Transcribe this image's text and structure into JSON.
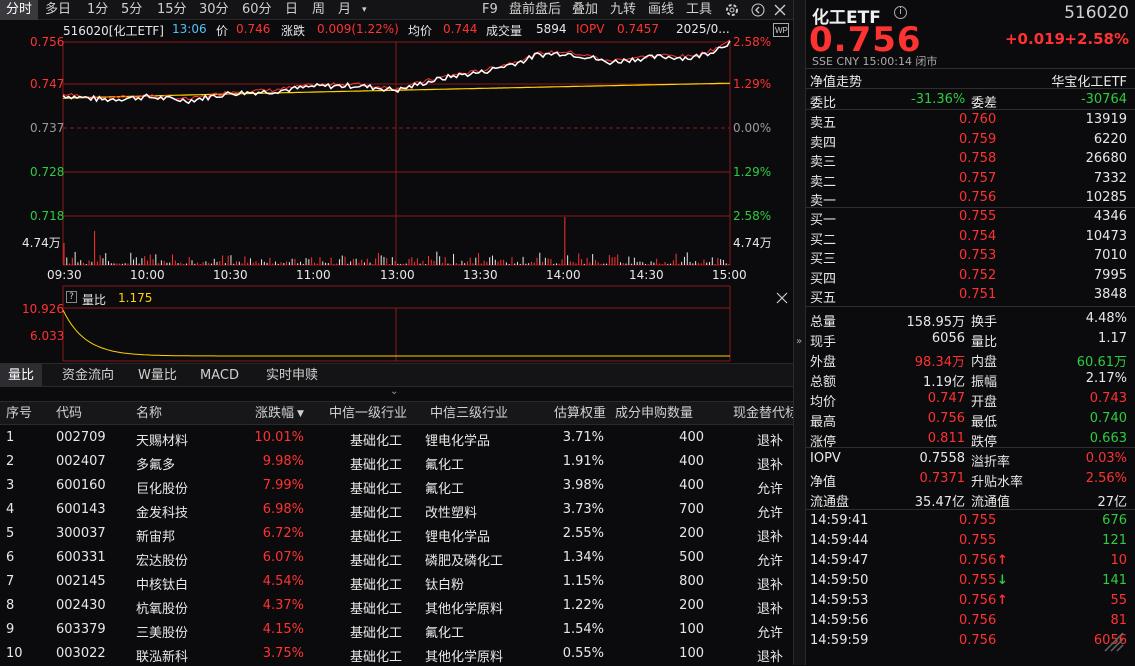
{
  "toolbar": {
    "left": [
      "分时",
      "多日",
      "1分",
      "5分",
      "15分",
      "30分",
      "60分",
      "日",
      "周",
      "月"
    ],
    "dropdown": "▾",
    "right": [
      "F9",
      "盘前盘后",
      "叠加",
      "九转",
      "画线",
      "工具"
    ]
  },
  "quote_line": {
    "name": "516020[化工ETF]",
    "time": "13:06",
    "price_label": "价",
    "price": "0.746",
    "change_label": "涨跌",
    "change": "0.009(1.22%)",
    "avg_label": "均价",
    "avg": "0.744",
    "volume_label": "成交量",
    "volume": "5894",
    "iopv_label": "IOPV",
    "iopv": "0.7457",
    "date": "2025/0..."
  },
  "price_axis_left": [
    "0.756",
    "0.747",
    "0.737",
    "0.728",
    "0.718"
  ],
  "price_axis_right": [
    "2.58%",
    "1.29%",
    "0.00%",
    "1.29%",
    "2.58%"
  ],
  "vol_axis": "4.74万",
  "time_axis": [
    "09:30",
    "10:00",
    "10:30",
    "11:00",
    "13:00",
    "13:30",
    "14:00",
    "14:30",
    "15:00"
  ],
  "sub_chart": {
    "label": "量比",
    "value": "1.175",
    "max": "10.926",
    "mid": "6.033"
  },
  "sub_tabs": [
    "量比",
    "资金流向",
    "W量比",
    "MACD",
    "实时申赎"
  ],
  "table": {
    "headers": [
      "序号",
      "代码",
      "名称",
      "涨跌幅",
      "中信一级行业",
      "中信三级行业",
      "估算权重",
      "成分申购数量",
      "现金替代标"
    ],
    "rows": [
      {
        "idx": "1",
        "code": "002709",
        "name": "天赐材料",
        "chg": "10.01%",
        "ind1": "基础化工",
        "ind3": "锂电化学品",
        "weight": "3.71%",
        "qty": "400",
        "cash": "退补"
      },
      {
        "idx": "2",
        "code": "002407",
        "name": "多氟多",
        "chg": "9.98%",
        "ind1": "基础化工",
        "ind3": "氟化工",
        "weight": "1.91%",
        "qty": "400",
        "cash": "退补"
      },
      {
        "idx": "3",
        "code": "600160",
        "name": "巨化股份",
        "chg": "7.99%",
        "ind1": "基础化工",
        "ind3": "氟化工",
        "weight": "3.98%",
        "qty": "400",
        "cash": "允许"
      },
      {
        "idx": "4",
        "code": "600143",
        "name": "金发科技",
        "chg": "6.98%",
        "ind1": "基础化工",
        "ind3": "改性塑料",
        "weight": "3.73%",
        "qty": "700",
        "cash": "允许"
      },
      {
        "idx": "5",
        "code": "300037",
        "name": "新宙邦",
        "chg": "6.72%",
        "ind1": "基础化工",
        "ind3": "锂电化学品",
        "weight": "2.55%",
        "qty": "200",
        "cash": "退补"
      },
      {
        "idx": "6",
        "code": "600331",
        "name": "宏达股份",
        "chg": "6.07%",
        "ind1": "基础化工",
        "ind3": "磷肥及磷化工",
        "weight": "1.34%",
        "qty": "500",
        "cash": "允许"
      },
      {
        "idx": "7",
        "code": "002145",
        "name": "中核钛白",
        "chg": "4.54%",
        "ind1": "基础化工",
        "ind3": "钛白粉",
        "weight": "1.15%",
        "qty": "800",
        "cash": "退补"
      },
      {
        "idx": "8",
        "code": "002430",
        "name": "杭氧股份",
        "chg": "4.37%",
        "ind1": "基础化工",
        "ind3": "其他化学原料",
        "weight": "1.22%",
        "qty": "200",
        "cash": "退补"
      },
      {
        "idx": "9",
        "code": "603379",
        "name": "三美股份",
        "chg": "4.15%",
        "ind1": "基础化工",
        "ind3": "氟化工",
        "weight": "1.54%",
        "qty": "100",
        "cash": "允许"
      },
      {
        "idx": "10",
        "code": "003022",
        "name": "联泓新科",
        "chg": "3.75%",
        "ind1": "基础化工",
        "ind3": "其他化学原料",
        "weight": "0.55%",
        "qty": "100",
        "cash": "退补"
      }
    ]
  },
  "right": {
    "title": "化工ETF",
    "code": "516020",
    "price": "0.756",
    "change": "+0.019",
    "change_pct": "+2.58%",
    "sub": "SSE  CNY  15:00:14  闭市",
    "nav_trend": "净值走势",
    "fund_name": "华宝化工ETF",
    "webi_label": "委比",
    "webi": "-31.36%",
    "weicha_label": "委差",
    "weicha": "-30764",
    "asks": [
      {
        "label": "卖五",
        "price": "0.760",
        "vol": "13919"
      },
      {
        "label": "卖四",
        "price": "0.759",
        "vol": "6220"
      },
      {
        "label": "卖三",
        "price": "0.758",
        "vol": "26680"
      },
      {
        "label": "卖二",
        "price": "0.757",
        "vol": "7332"
      },
      {
        "label": "卖一",
        "price": "0.756",
        "vol": "10285"
      }
    ],
    "bids": [
      {
        "label": "买一",
        "price": "0.755",
        "vol": "4346"
      },
      {
        "label": "买二",
        "price": "0.754",
        "vol": "10473"
      },
      {
        "label": "买三",
        "price": "0.753",
        "vol": "7010"
      },
      {
        "label": "买四",
        "price": "0.752",
        "vol": "7995"
      },
      {
        "label": "买五",
        "price": "0.751",
        "vol": "3848"
      }
    ],
    "stats": [
      {
        "l1": "总量",
        "v1": "158.95万",
        "l2": "换手",
        "v2": "4.48%"
      },
      {
        "l1": "现手",
        "v1": "6056",
        "l2": "量比",
        "v2": "1.17"
      },
      {
        "l1": "外盘",
        "v1": "98.34万",
        "l2": "内盘",
        "v2": "60.61万"
      },
      {
        "l1": "总额",
        "v1": "1.19亿",
        "l2": "振幅",
        "v2": "2.17%"
      },
      {
        "l1": "均价",
        "v1": "0.747",
        "l2": "开盘",
        "v2": "0.743"
      },
      {
        "l1": "最高",
        "v1": "0.756",
        "l2": "最低",
        "v2": "0.740"
      },
      {
        "l1": "涨停",
        "v1": "0.811",
        "l2": "跌停",
        "v2": "0.663"
      }
    ],
    "iopv_stats": [
      {
        "l1": "IOPV",
        "v1": "0.7558",
        "l2": "溢折率",
        "v2": "0.03%"
      },
      {
        "l1": "净值",
        "v1": "0.7371",
        "l2": "升贴水率",
        "v2": "2.56%"
      },
      {
        "l1": "流通盘",
        "v1": "35.47亿",
        "l2": "流通值",
        "v2": "27亿"
      }
    ],
    "ticks": [
      {
        "time": "14:59:41",
        "price": "0.755",
        "arrow": "",
        "vol": "676"
      },
      {
        "time": "14:59:44",
        "price": "0.755",
        "arrow": "",
        "vol": "121"
      },
      {
        "time": "14:59:47",
        "price": "0.756",
        "arrow": "↑",
        "vol": "10"
      },
      {
        "time": "14:59:50",
        "price": "0.755",
        "arrow": "↓",
        "vol": "141"
      },
      {
        "time": "14:59:53",
        "price": "0.756",
        "arrow": "↑",
        "vol": "55"
      },
      {
        "time": "14:59:56",
        "price": "0.756",
        "arrow": "",
        "vol": "81"
      },
      {
        "time": "14:59:59",
        "price": "0.756",
        "arrow": "",
        "vol": "6056"
      }
    ]
  },
  "colors": {
    "up": "#ff3232",
    "down": "#2ecc40",
    "avg": "#ffd200",
    "price": "#ffffff",
    "bg": "#0b0b0d"
  }
}
